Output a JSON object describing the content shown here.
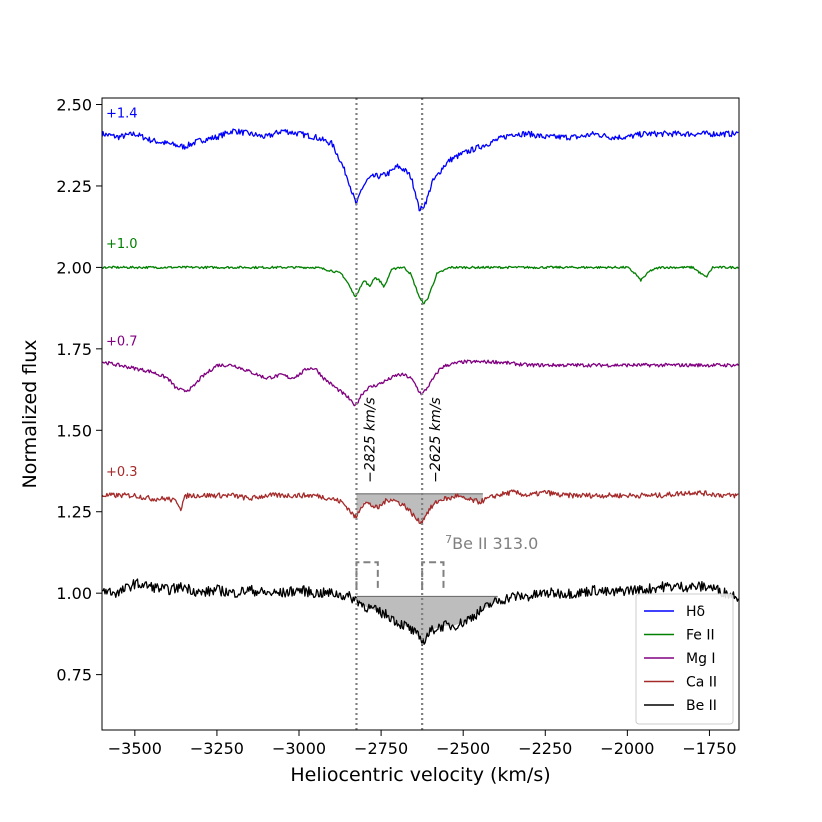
{
  "chart_data": {
    "type": "line",
    "title": "",
    "xlabel": "Heliocentric velocity (km/s)",
    "ylabel": "Normalized flux",
    "xlim": [
      -3600,
      -1660
    ],
    "ylim": [
      0.58,
      2.52
    ],
    "x_ticks": [
      -3500,
      -3250,
      -3000,
      -2750,
      -2500,
      -2250,
      -2000,
      -1750
    ],
    "x_tick_labels": [
      "−3500",
      "−3250",
      "−3000",
      "−2750",
      "−2500",
      "−2250",
      "−2000",
      "−1750"
    ],
    "y_ticks": [
      0.75,
      1.0,
      1.25,
      1.5,
      1.75,
      2.0,
      2.25,
      2.5
    ],
    "y_tick_labels": [
      "0.75",
      "1.00",
      "1.25",
      "1.50",
      "1.75",
      "2.00",
      "2.25",
      "2.50"
    ],
    "grid": false,
    "legend_position": "lower-right",
    "series": [
      {
        "name": "Hδ",
        "offset_label": "+1.4",
        "color": "#0000ff",
        "x": [
          -3600,
          -3550,
          -3500,
          -3450,
          -3400,
          -3350,
          -3300,
          -3250,
          -3200,
          -3150,
          -3100,
          -3050,
          -3000,
          -2950,
          -2900,
          -2875,
          -2850,
          -2835,
          -2825,
          -2810,
          -2790,
          -2770,
          -2750,
          -2725,
          -2700,
          -2680,
          -2660,
          -2645,
          -2635,
          -2625,
          -2610,
          -2595,
          -2580,
          -2560,
          -2540,
          -2500,
          -2450,
          -2400,
          -2350,
          -2300,
          -2250,
          -2200,
          -2150,
          -2100,
          -2050,
          -2000,
          -1950,
          -1900,
          -1850,
          -1800,
          -1750,
          -1700,
          -1660
        ],
        "y": [
          2.41,
          2.4,
          2.41,
          2.39,
          2.38,
          2.37,
          2.39,
          2.4,
          2.42,
          2.41,
          2.4,
          2.42,
          2.41,
          2.4,
          2.38,
          2.33,
          2.27,
          2.22,
          2.19,
          2.24,
          2.27,
          2.28,
          2.28,
          2.29,
          2.31,
          2.3,
          2.28,
          2.23,
          2.18,
          2.18,
          2.21,
          2.26,
          2.28,
          2.31,
          2.33,
          2.35,
          2.37,
          2.39,
          2.41,
          2.41,
          2.4,
          2.4,
          2.4,
          2.41,
          2.4,
          2.4,
          2.41,
          2.41,
          2.41,
          2.41,
          2.41,
          2.41,
          2.41
        ]
      },
      {
        "name": "Fe II",
        "offset_label": "+1.0",
        "color": "#008000",
        "x": [
          -3600,
          -3500,
          -3400,
          -3300,
          -3200,
          -3100,
          -3000,
          -2950,
          -2900,
          -2870,
          -2850,
          -2835,
          -2825,
          -2815,
          -2800,
          -2785,
          -2770,
          -2755,
          -2740,
          -2720,
          -2700,
          -2680,
          -2660,
          -2645,
          -2630,
          -2620,
          -2610,
          -2595,
          -2580,
          -2560,
          -2540,
          -2500,
          -2400,
          -2300,
          -2200,
          -2100,
          -2050,
          -2000,
          -1975,
          -1960,
          -1930,
          -1900,
          -1850,
          -1800,
          -1775,
          -1760,
          -1740,
          -1700,
          -1660
        ],
        "y": [
          2.0,
          2.0,
          2.0,
          2.0,
          2.0,
          2.0,
          2.0,
          2.0,
          1.99,
          1.98,
          1.95,
          1.92,
          1.91,
          1.94,
          1.96,
          1.94,
          1.97,
          1.96,
          1.94,
          1.99,
          2.0,
          2.0,
          1.98,
          1.94,
          1.9,
          1.89,
          1.9,
          1.94,
          1.98,
          1.99,
          2.0,
          2.0,
          2.0,
          2.0,
          2.0,
          2.0,
          2.0,
          2.0,
          1.98,
          1.96,
          1.99,
          2.0,
          2.0,
          2.0,
          1.98,
          1.97,
          2.0,
          2.0,
          2.0
        ]
      },
      {
        "name": "Mg I",
        "offset_label": "+0.7",
        "color": "#800080",
        "x": [
          -3600,
          -3550,
          -3500,
          -3450,
          -3400,
          -3375,
          -3350,
          -3325,
          -3300,
          -3250,
          -3200,
          -3150,
          -3100,
          -3050,
          -3025,
          -3000,
          -2975,
          -2950,
          -2925,
          -2900,
          -2875,
          -2850,
          -2835,
          -2825,
          -2810,
          -2790,
          -2760,
          -2740,
          -2720,
          -2700,
          -2680,
          -2660,
          -2645,
          -2635,
          -2625,
          -2610,
          -2590,
          -2570,
          -2550,
          -2500,
          -2400,
          -2300,
          -2200,
          -2100,
          -2000,
          -1900,
          -1800,
          -1700,
          -1660
        ],
        "y": [
          1.71,
          1.7,
          1.69,
          1.68,
          1.66,
          1.63,
          1.62,
          1.63,
          1.66,
          1.7,
          1.7,
          1.68,
          1.66,
          1.67,
          1.66,
          1.67,
          1.69,
          1.69,
          1.66,
          1.64,
          1.62,
          1.6,
          1.58,
          1.58,
          1.61,
          1.63,
          1.64,
          1.65,
          1.66,
          1.67,
          1.67,
          1.66,
          1.64,
          1.62,
          1.61,
          1.63,
          1.66,
          1.69,
          1.7,
          1.71,
          1.71,
          1.7,
          1.7,
          1.7,
          1.7,
          1.7,
          1.7,
          1.7,
          1.7
        ]
      },
      {
        "name": "Ca II",
        "offset_label": "+0.3",
        "color": "#a52a2a",
        "x": [
          -3600,
          -3550,
          -3500,
          -3450,
          -3400,
          -3370,
          -3360,
          -3350,
          -3340,
          -3300,
          -3250,
          -3200,
          -3150,
          -3100,
          -3050,
          -3000,
          -2950,
          -2900,
          -2870,
          -2850,
          -2835,
          -2825,
          -2815,
          -2800,
          -2780,
          -2760,
          -2740,
          -2720,
          -2700,
          -2680,
          -2660,
          -2645,
          -2635,
          -2625,
          -2615,
          -2600,
          -2580,
          -2560,
          -2540,
          -2520,
          -2500,
          -2450,
          -2400,
          -2350,
          -2300,
          -2250,
          -2200,
          -2100,
          -2000,
          -1900,
          -1800,
          -1700,
          -1660
        ],
        "y": [
          1.3,
          1.3,
          1.3,
          1.29,
          1.29,
          1.28,
          1.26,
          1.29,
          1.3,
          1.3,
          1.3,
          1.3,
          1.29,
          1.3,
          1.3,
          1.3,
          1.3,
          1.29,
          1.28,
          1.26,
          1.24,
          1.23,
          1.26,
          1.28,
          1.27,
          1.26,
          1.28,
          1.29,
          1.28,
          1.27,
          1.25,
          1.23,
          1.22,
          1.22,
          1.24,
          1.26,
          1.28,
          1.29,
          1.29,
          1.3,
          1.29,
          1.28,
          1.3,
          1.31,
          1.3,
          1.31,
          1.3,
          1.3,
          1.3,
          1.3,
          1.31,
          1.3,
          1.3
        ]
      },
      {
        "name": "Be II",
        "offset_label": "",
        "color": "#000000",
        "x": [
          -3600,
          -3550,
          -3500,
          -3450,
          -3400,
          -3350,
          -3300,
          -3250,
          -3200,
          -3150,
          -3100,
          -3050,
          -3000,
          -2950,
          -2900,
          -2850,
          -2825,
          -2800,
          -2775,
          -2750,
          -2725,
          -2700,
          -2675,
          -2650,
          -2630,
          -2620,
          -2610,
          -2590,
          -2560,
          -2530,
          -2500,
          -2470,
          -2440,
          -2410,
          -2380,
          -2350,
          -2300,
          -2250,
          -2200,
          -2150,
          -2100,
          -2050,
          -2000,
          -1950,
          -1900,
          -1850,
          -1800,
          -1750,
          -1700,
          -1660
        ],
        "y": [
          1.01,
          1.0,
          1.03,
          1.02,
          1.01,
          1.02,
          1.0,
          1.01,
          1.0,
          1.01,
          1.0,
          1.0,
          1.01,
          1.0,
          1.0,
          0.99,
          0.98,
          0.96,
          0.95,
          0.94,
          0.93,
          0.91,
          0.9,
          0.88,
          0.86,
          0.85,
          0.87,
          0.89,
          0.9,
          0.9,
          0.91,
          0.93,
          0.95,
          0.97,
          0.98,
          0.99,
          0.99,
          1.0,
          1.0,
          1.0,
          1.01,
          1.0,
          1.01,
          1.01,
          1.02,
          1.02,
          1.02,
          1.02,
          1.0,
          0.99
        ]
      }
    ],
    "vertical_lines": [
      {
        "x": -2825,
        "label": "−2825 km/s"
      },
      {
        "x": -2625,
        "label": "−2625 km/s"
      }
    ],
    "shaded_regions": [
      {
        "series": "Ca II",
        "x0": -2825,
        "x1": -2440,
        "level": 1.305
      },
      {
        "series": "Be II",
        "x0": -2825,
        "x1": -2395,
        "level": 0.99
      }
    ],
    "doublet_markers": {
      "label_sup": "7",
      "label": "Be II 313.0",
      "color": "#808080",
      "label_x": -2555,
      "label_y": 1.135,
      "markers": [
        {
          "x0": -2825,
          "x1": -2760,
          "y_low": 1.015,
          "y_high": 1.095
        },
        {
          "x0": -2625,
          "x1": -2560,
          "y_low": 1.015,
          "y_high": 1.095
        }
      ]
    }
  }
}
